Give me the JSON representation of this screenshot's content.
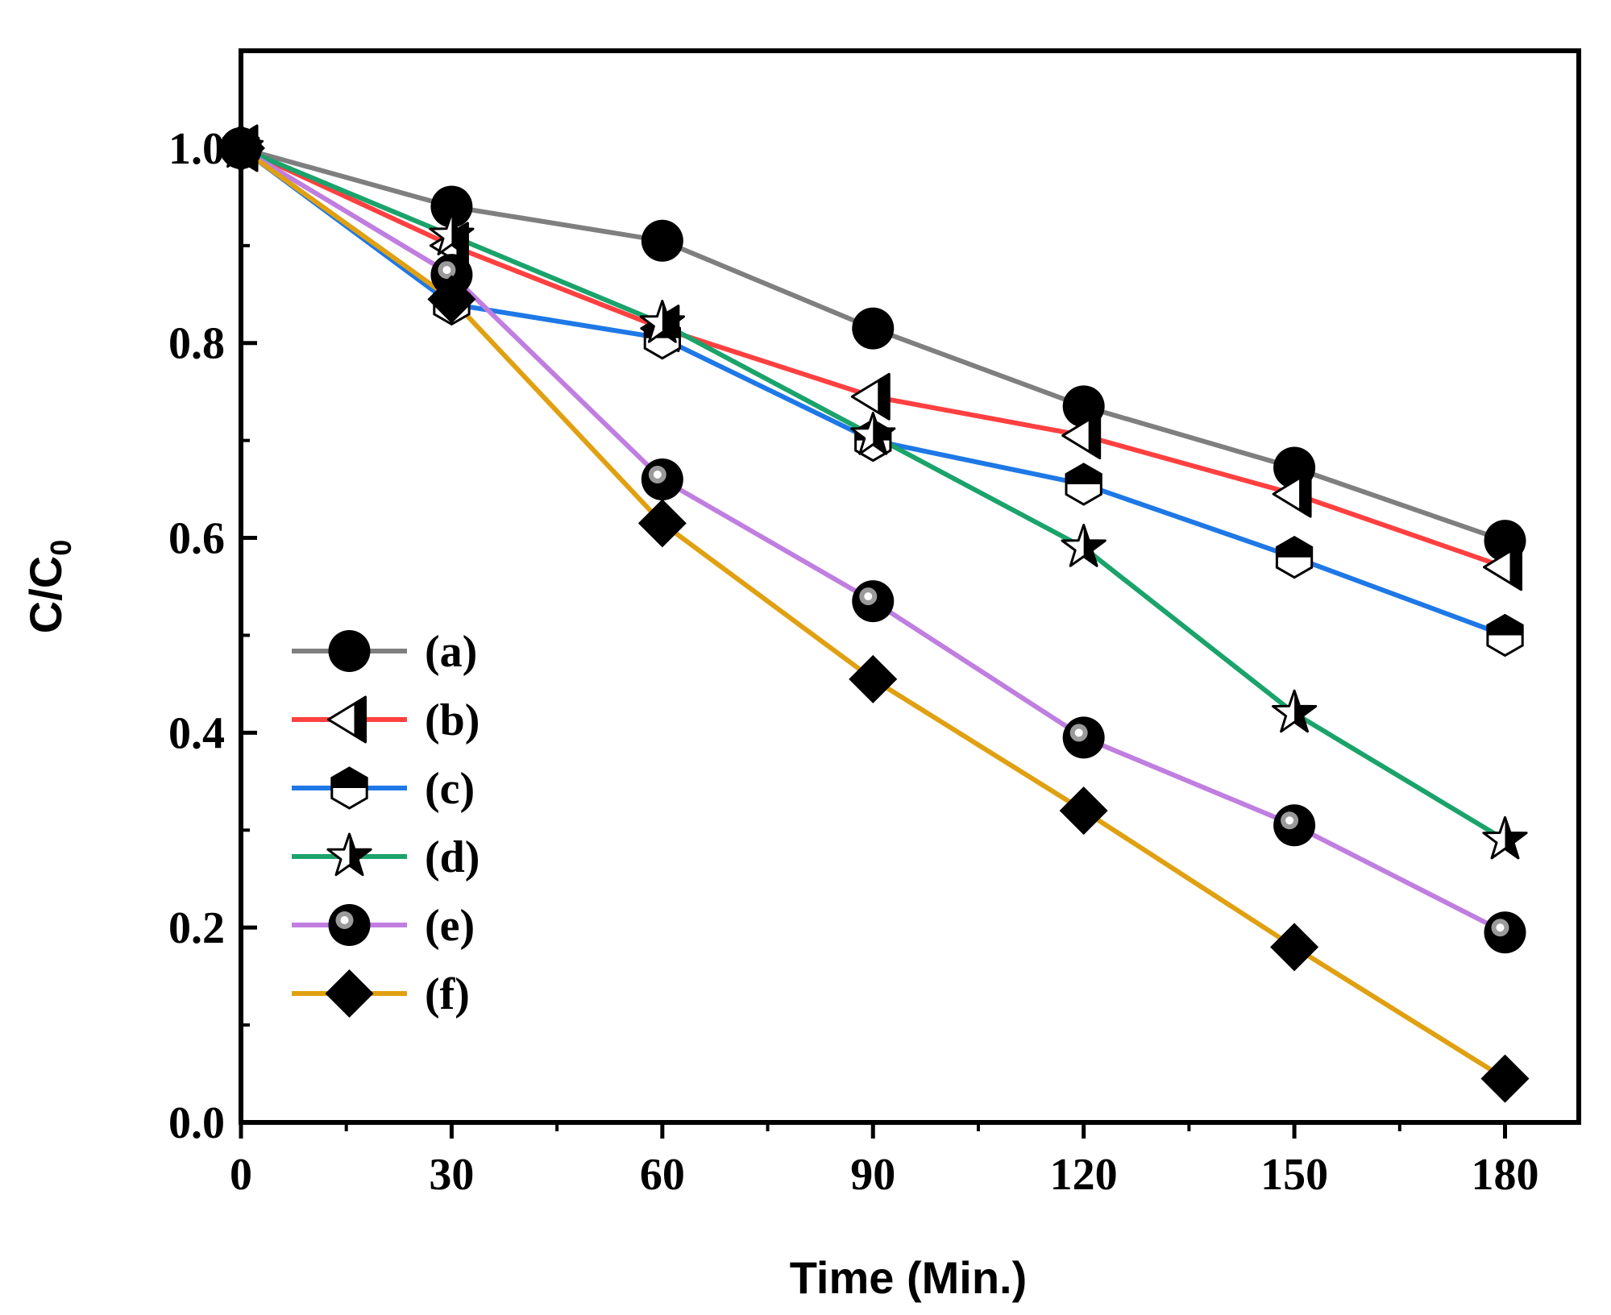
{
  "chart_data": {
    "type": "line",
    "title": "",
    "xlabel": "Time (Min.)",
    "ylabel_main": "C/C",
    "ylabel_sub": "0",
    "xlim": [
      0,
      190.5
    ],
    "ylim": [
      0.0,
      1.1
    ],
    "x": [
      0,
      30,
      60,
      90,
      120,
      150,
      180
    ],
    "x_ticks": [
      0,
      30,
      60,
      90,
      120,
      150,
      180
    ],
    "x_tick_labels": [
      "0",
      "30",
      "60",
      "90",
      "120",
      "150",
      "180"
    ],
    "x_minor_ticks": [
      15,
      45,
      75,
      105,
      135,
      165
    ],
    "y_ticks": [
      0.0,
      0.2,
      0.4,
      0.6,
      0.8,
      1.0
    ],
    "y_tick_labels": [
      "0.0",
      "0.2",
      "0.4",
      "0.6",
      "0.8",
      "1.0"
    ],
    "y_minor_ticks": [
      0.1,
      0.3,
      0.5,
      0.7,
      0.9
    ],
    "grid": false,
    "legend_position": "lower-left",
    "series": [
      {
        "name": "(a)",
        "color": "#7f7f7f",
        "marker": "circle",
        "values": [
          1.0,
          0.94,
          0.905,
          0.815,
          0.735,
          0.672,
          0.597
        ]
      },
      {
        "name": "(b)",
        "color": "#ff4040",
        "marker": "triangle-left",
        "values": [
          1.0,
          0.9,
          0.815,
          0.745,
          0.705,
          0.645,
          0.57
        ]
      },
      {
        "name": "(c)",
        "color": "#1e78e6",
        "marker": "hexagon",
        "values": [
          1.0,
          0.84,
          0.805,
          0.7,
          0.655,
          0.58,
          0.5
        ]
      },
      {
        "name": "(d)",
        "color": "#1aa36b",
        "marker": "star",
        "values": [
          1.0,
          0.91,
          0.82,
          0.705,
          0.59,
          0.42,
          0.29
        ]
      },
      {
        "name": "(e)",
        "color": "#c07ee0",
        "marker": "sphere",
        "values": [
          1.0,
          0.87,
          0.66,
          0.535,
          0.395,
          0.305,
          0.195
        ]
      },
      {
        "name": "(f)",
        "color": "#e0a010",
        "marker": "diamond",
        "values": [
          1.0,
          0.845,
          0.615,
          0.455,
          0.32,
          0.18,
          0.045
        ]
      }
    ]
  }
}
